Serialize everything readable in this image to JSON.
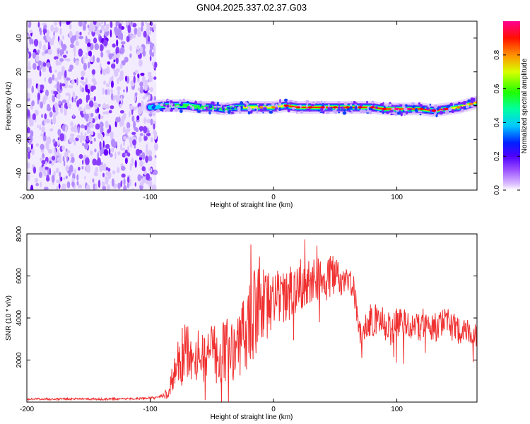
{
  "title": "GN04.2025.337.02.37.G03",
  "chart_data": [
    {
      "type": "heatmap",
      "name": "spectrogram",
      "xlabel": "Height of straight line (km)",
      "ylabel": "Frequency (Hz)",
      "xlim": [
        -200,
        165
      ],
      "ylim": [
        -50,
        50
      ],
      "xticks": [
        -200,
        -100,
        0,
        100
      ],
      "yticks": [
        -40,
        -20,
        0,
        20,
        40
      ],
      "colorbar": {
        "label": "Normalized spectral amplitude",
        "range": [
          0.0,
          1.0
        ],
        "ticks": [
          "0.0",
          "0.2",
          "0.4",
          "0.6",
          "0.8"
        ],
        "colors": [
          "#ffffff",
          "#b98cff",
          "#7000ff",
          "#0000ff",
          "#00d8ff",
          "#00ff40",
          "#ffff00",
          "#ff8000",
          "#ff0000",
          "#ff0080"
        ]
      },
      "noise_region": {
        "x_from": -200,
        "x_to": -95,
        "freq_from": -50,
        "freq_to": 50,
        "amplitude": 0.2
      },
      "signal_trace": {
        "x": [
          -100,
          -90,
          -80,
          -70,
          -60,
          -50,
          -40,
          -30,
          -20,
          -10,
          0,
          10,
          20,
          30,
          40,
          50,
          60,
          70,
          80,
          90,
          100,
          110,
          120,
          130,
          140,
          150,
          160,
          165
        ],
        "freq": [
          -1,
          0,
          0,
          0,
          -1,
          -1,
          -2,
          -1,
          -1,
          -1,
          -1,
          0,
          -1,
          -1,
          -1,
          -1,
          -1,
          -1,
          -1,
          -2,
          -2,
          -2,
          -2,
          -3,
          -2,
          -1,
          1,
          2
        ],
        "amplitude": [
          0.4,
          0.45,
          0.5,
          0.5,
          0.55,
          0.6,
          0.65,
          0.7,
          0.75,
          0.8,
          0.8,
          0.85,
          0.85,
          0.9,
          0.9,
          0.9,
          0.9,
          0.85,
          0.85,
          0.9,
          0.95,
          0.95,
          0.9,
          0.9,
          0.85,
          0.8,
          0.8,
          0.8
        ]
      }
    },
    {
      "type": "line",
      "name": "snr",
      "xlabel": "Height of straight line (km)",
      "ylabel": "SNR (10 * v/v)",
      "xlim": [
        -200,
        165
      ],
      "ylim": [
        0,
        8000
      ],
      "xticks": [
        -200,
        -100,
        0,
        100
      ],
      "yticks": [
        2000,
        4000,
        6000,
        8000
      ],
      "color": "#f03030",
      "series": [
        {
          "name": "SNR",
          "x": [
            -200,
            -190,
            -180,
            -170,
            -160,
            -150,
            -140,
            -130,
            -120,
            -110,
            -100,
            -95,
            -90,
            -85,
            -80,
            -75,
            -70,
            -65,
            -60,
            -55,
            -50,
            -45,
            -40,
            -35,
            -30,
            -25,
            -20,
            -15,
            -10,
            -5,
            0,
            5,
            10,
            15,
            20,
            25,
            30,
            35,
            40,
            45,
            50,
            55,
            60,
            65,
            70,
            75,
            80,
            85,
            90,
            95,
            100,
            105,
            110,
            115,
            120,
            125,
            130,
            135,
            140,
            145,
            150,
            155,
            160,
            165
          ],
          "y": [
            150,
            150,
            140,
            150,
            160,
            150,
            140,
            150,
            150,
            160,
            200,
            200,
            250,
            500,
            1400,
            2100,
            2400,
            2300,
            2100,
            2300,
            2300,
            2100,
            2300,
            2400,
            2600,
            3200,
            3600,
            4200,
            4400,
            4700,
            5000,
            5000,
            4900,
            5300,
            5600,
            5600,
            5800,
            5900,
            5800,
            6000,
            5900,
            5600,
            5700,
            5500,
            3200,
            3500,
            4000,
            3800,
            3700,
            3400,
            3800,
            3900,
            3700,
            3600,
            3600,
            3600,
            3500,
            3700,
            3800,
            3600,
            3400,
            3400,
            3400,
            3100
          ],
          "noise_amplitude": [
            50,
            50,
            50,
            50,
            50,
            50,
            50,
            50,
            50,
            50,
            60,
            60,
            120,
            350,
            900,
            1400,
            1500,
            1400,
            1300,
            1400,
            1500,
            1400,
            1600,
            1700,
            1800,
            1900,
            2000,
            2200,
            1900,
            1700,
            1300,
            1300,
            1300,
            1300,
            1200,
            1200,
            1100,
            1100,
            1100,
            1200,
            1000,
            800,
            700,
            600,
            700,
            800,
            800,
            800,
            800,
            800,
            700,
            700,
            700,
            700,
            700,
            700,
            700,
            700,
            700,
            700,
            700,
            600,
            600,
            600
          ]
        }
      ]
    }
  ]
}
